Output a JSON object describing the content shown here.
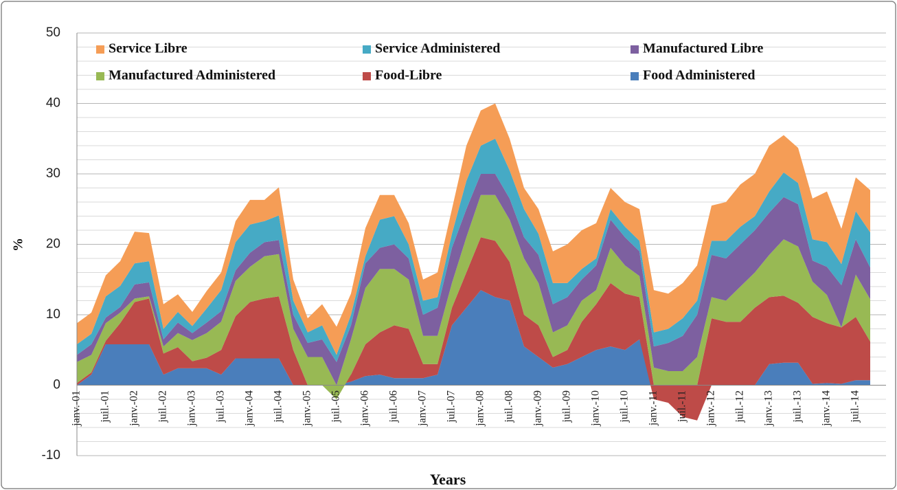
{
  "chart_data": {
    "type": "stacked_area",
    "x_label": "Years",
    "y_label": "%",
    "ylim": [
      -10,
      50
    ],
    "yticks": [
      -10,
      0,
      10,
      20,
      30,
      40,
      50
    ],
    "grid": true,
    "categories": [
      "janv.-01",
      null,
      "juil.-01",
      null,
      "janv.-02",
      null,
      "juil.-02",
      null,
      "janv.-03",
      null,
      "juil.-03",
      null,
      "janv.-04",
      null,
      "juil.-04",
      null,
      "janv.-05",
      null,
      "juil.-05",
      null,
      "janv.-06",
      null,
      "juil.-06",
      null,
      "janv.-07",
      null,
      "juil.-07",
      null,
      "janv.-08",
      null,
      "juil.-08",
      null,
      "janv.-09",
      null,
      "juil.-09",
      null,
      "janv.-10",
      null,
      "juil.-10",
      null,
      "janv.-11",
      null,
      "juil.-11",
      null,
      "janv.-12",
      null,
      "juil.-12",
      null,
      "janv.-13",
      null,
      "juil.-13",
      null,
      "janv.-14",
      null,
      "juil.-14",
      null
    ],
    "series": [
      {
        "name": "Food Administered",
        "color": "#4a7ebb",
        "values": [
          0,
          1.5,
          5.8,
          5.8,
          5.8,
          5.8,
          1.5,
          2.4,
          2.4,
          2.4,
          1.5,
          3.8,
          3.8,
          3.8,
          3.8,
          0,
          0,
          0,
          0,
          0.5,
          1.3,
          1.5,
          1,
          1,
          1,
          1.5,
          8.5,
          11,
          13.5,
          12.5,
          12,
          5.5,
          4,
          2.5,
          3,
          4,
          5,
          5.5,
          5,
          6.5,
          0,
          0,
          0,
          0,
          0,
          0,
          0,
          0,
          3,
          3.2,
          3.2,
          0.2,
          0.3,
          0.2,
          0.7,
          0.7
        ]
      },
      {
        "name": "Food-Libre",
        "color": "#be4b48",
        "values": [
          0.3,
          0.3,
          0.5,
          3,
          6,
          6.5,
          3,
          3,
          1,
          1.5,
          3.5,
          6,
          8,
          8.5,
          8.8,
          5,
          0,
          0,
          0,
          1,
          4.5,
          6,
          7.5,
          7,
          2,
          1.5,
          2.5,
          5,
          7.5,
          8,
          5.5,
          4.5,
          4.5,
          1.5,
          2,
          5,
          6.5,
          9,
          8,
          6,
          -2,
          -2.5,
          -4.5,
          -5,
          9.5,
          9,
          9,
          11,
          9.5,
          9.5,
          8.5,
          9.5,
          8.5,
          8,
          9,
          5.5
        ]
      },
      {
        "name": "Manufactured Administered",
        "color": "#98b954",
        "values": [
          3,
          2.5,
          2.5,
          1.5,
          0.5,
          0.3,
          1,
          2,
          3,
          3.5,
          4,
          5,
          5,
          6,
          6,
          3,
          4,
          4,
          -2,
          5,
          8,
          9,
          8,
          7,
          4,
          4,
          3.5,
          5,
          6,
          6.5,
          6,
          8,
          6,
          3.5,
          3.5,
          3,
          2,
          5,
          4,
          3,
          2.5,
          2,
          2,
          4,
          3,
          3,
          5,
          5,
          6,
          8,
          8,
          5,
          4,
          0,
          6,
          6
        ]
      },
      {
        "name": "Manufactured Libre",
        "color": "#7d60a0",
        "values": [
          1,
          1.5,
          0.8,
          0.8,
          2,
          2,
          1,
          1.5,
          1,
          1.5,
          1.5,
          1.5,
          2,
          2,
          2,
          2,
          2,
          2.5,
          3.3,
          2,
          3.5,
          3,
          3.5,
          3,
          3,
          4,
          5,
          4,
          3,
          3,
          3,
          3,
          4,
          4,
          4,
          3,
          3.5,
          4,
          4,
          3.5,
          3,
          4,
          5,
          6,
          6,
          6,
          6,
          6,
          6,
          6,
          6,
          3,
          4,
          6,
          5,
          4.5
        ]
      },
      {
        "name": "Service Administered",
        "color": "#46aac5",
        "values": [
          1.5,
          1.5,
          3,
          3,
          3,
          3,
          1.5,
          1.5,
          1,
          2,
          3,
          4,
          4,
          3,
          3.5,
          2,
          1.5,
          2,
          1,
          1.5,
          1,
          4,
          4,
          2,
          2,
          1.5,
          2,
          4,
          4,
          5,
          4,
          4,
          3,
          3,
          2,
          1.5,
          1,
          1.5,
          1.5,
          1.5,
          2,
          2,
          2.5,
          2,
          2,
          2.5,
          2.5,
          2,
          3,
          3.5,
          3,
          3,
          3.5,
          3,
          4,
          5
        ]
      },
      {
        "name": "Service Libre",
        "color": "#f59d56",
        "values": [
          3,
          3,
          3,
          3.5,
          4.5,
          4,
          3.5,
          2.5,
          2,
          2.5,
          2.5,
          3,
          3.5,
          3,
          4,
          3,
          2,
          3,
          4,
          3,
          4,
          3.5,
          3,
          3,
          3,
          3.5,
          3.5,
          5,
          5,
          5,
          4.5,
          3,
          3.5,
          4.5,
          5.5,
          5.5,
          5,
          3,
          3.5,
          4.5,
          6,
          5,
          5,
          5,
          5,
          5.5,
          6,
          6,
          6.5,
          5.3,
          5,
          5.8,
          7.2,
          5,
          4.8,
          6
        ]
      }
    ]
  }
}
